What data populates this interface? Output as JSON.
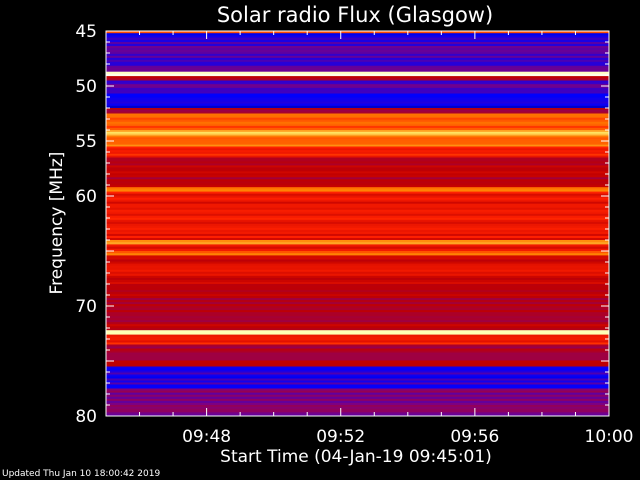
{
  "footer": {
    "updated": "Updated Thu Jan 10 18:00:42 2019"
  },
  "chart_data": {
    "type": "heatmap",
    "title": "Solar radio Flux (Glasgow)",
    "xlabel": "Start Time (04-Jan-19 09:45:01)",
    "ylabel": "Frequency [MHz]",
    "x_range_minutes": [
      45.0,
      60.0
    ],
    "x_ticks": [
      {
        "minute": 48,
        "label": "09:48"
      },
      {
        "minute": 52,
        "label": "09:52"
      },
      {
        "minute": 56,
        "label": "09:56"
      },
      {
        "minute": 60,
        "label": "10:00"
      }
    ],
    "y_range_mhz": [
      45,
      80
    ],
    "y_ticks": [
      45,
      50,
      55,
      60,
      65,
      70,
      75,
      80
    ],
    "y_tick_labels": [
      "45",
      "50",
      "55",
      "60",
      "",
      "70",
      "",
      "80"
    ],
    "colormap": [
      "#000060",
      "#0000ff",
      "#7f007f",
      "#c00000",
      "#ff2000",
      "#ff8000",
      "#ffff80",
      "#ffffff"
    ],
    "bands": [
      {
        "f0": 45.0,
        "f1": 45.2,
        "intensity": 0.62
      },
      {
        "f0": 45.2,
        "f1": 46.0,
        "intensity": 0.15
      },
      {
        "f0": 46.0,
        "f1": 48.7,
        "intensity": 0.22
      },
      {
        "f0": 48.7,
        "f1": 49.1,
        "intensity": 0.98
      },
      {
        "f0": 49.1,
        "f1": 49.5,
        "intensity": 0.4
      },
      {
        "f0": 49.5,
        "f1": 50.5,
        "intensity": 0.22
      },
      {
        "f0": 50.5,
        "f1": 51.6,
        "intensity": 0.18
      },
      {
        "f0": 51.6,
        "f1": 52.0,
        "intensity": 0.1
      },
      {
        "f0": 52.0,
        "f1": 52.5,
        "intensity": 0.38
      },
      {
        "f0": 52.5,
        "f1": 54.0,
        "intensity": 0.65
      },
      {
        "f0": 54.0,
        "f1": 54.5,
        "intensity": 0.8
      },
      {
        "f0": 54.5,
        "f1": 55.5,
        "intensity": 0.68
      },
      {
        "f0": 55.5,
        "f1": 56.5,
        "intensity": 0.58
      },
      {
        "f0": 56.5,
        "f1": 59.2,
        "intensity": 0.42
      },
      {
        "f0": 59.2,
        "f1": 59.6,
        "intensity": 0.72
      },
      {
        "f0": 59.6,
        "f1": 64.0,
        "intensity": 0.52
      },
      {
        "f0": 64.0,
        "f1": 64.4,
        "intensity": 0.76
      },
      {
        "f0": 64.4,
        "f1": 65.0,
        "intensity": 0.5
      },
      {
        "f0": 65.0,
        "f1": 65.4,
        "intensity": 0.68
      },
      {
        "f0": 65.4,
        "f1": 68.0,
        "intensity": 0.48
      },
      {
        "f0": 68.0,
        "f1": 72.2,
        "intensity": 0.4
      },
      {
        "f0": 72.2,
        "f1": 72.6,
        "intensity": 0.88
      },
      {
        "f0": 72.6,
        "f1": 73.5,
        "intensity": 0.55
      },
      {
        "f0": 73.5,
        "f1": 75.5,
        "intensity": 0.4
      },
      {
        "f0": 75.5,
        "f1": 77.5,
        "intensity": 0.18
      },
      {
        "f0": 77.5,
        "f1": 79.0,
        "intensity": 0.28
      },
      {
        "f0": 79.0,
        "f1": 80.0,
        "intensity": 0.3
      }
    ]
  }
}
